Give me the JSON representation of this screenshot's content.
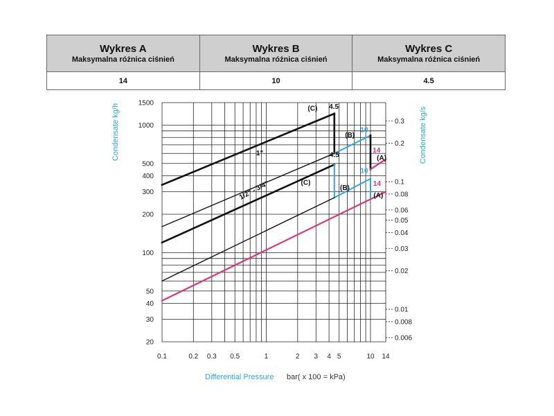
{
  "table": {
    "headers": [
      {
        "title": "Wykres A",
        "subtitle": "Maksymalna różnica ciśnień"
      },
      {
        "title": "Wykres B",
        "subtitle": "Maksymalna różnica ciśnień"
      },
      {
        "title": "Wykres C",
        "subtitle": "Maksymalna różnica ciśnień"
      }
    ],
    "values": [
      "14",
      "10",
      "4.5"
    ]
  },
  "colors": {
    "black": "#111111",
    "blue": "#27a9e1",
    "magenta": "#e0337a",
    "grid": "#222222",
    "axis_label": "#27a9e1"
  },
  "chart_data": {
    "type": "line",
    "x_scale": "log",
    "y_scale": "log",
    "xlim": [
      0.1,
      14
    ],
    "ylim": [
      20,
      1500
    ],
    "y2lim": [
      0.00556,
      0.4167
    ],
    "xticks": [
      0.1,
      0.2,
      0.3,
      0.5,
      1,
      2,
      3,
      4,
      5,
      10,
      14
    ],
    "xtick_labels": [
      "0.1",
      "0.2",
      "0.3",
      "0.5",
      "1",
      "2",
      "3",
      "4",
      "5",
      "10",
      "14"
    ],
    "yticks": [
      20,
      30,
      40,
      50,
      100,
      200,
      300,
      400,
      500,
      1000,
      1500
    ],
    "ytick_labels": [
      "20",
      "30",
      "40",
      "50",
      "100",
      "200",
      "300",
      "400",
      "500",
      "1000",
      "1500"
    ],
    "y2ticks": [
      0.006,
      0.008,
      0.01,
      0.02,
      0.03,
      0.04,
      0.05,
      0.06,
      0.08,
      0.1,
      0.2,
      0.3
    ],
    "y2tick_labels": [
      "0.006",
      "0.008",
      "0.01",
      "0.02",
      "0.03",
      "0.04",
      "0.05",
      "0.06",
      "0.08",
      "0.1",
      "0.2",
      "0.3"
    ],
    "xlabel": "Differential Pressure",
    "xlabel_units": "bar( x 100 = kPa)",
    "ylabel": "Condensate kg/h",
    "y2label": "Condensate kg/s",
    "grid": true,
    "series": [
      {
        "name": "1\"",
        "color": "black",
        "width": 2.6,
        "x": [
          0.1,
          4.5
        ],
        "y": [
          340,
          1230
        ]
      },
      {
        "color": "black",
        "width": 2.6,
        "x": [
          4.5,
          4.5
        ],
        "y": [
          1230,
          600
        ]
      },
      {
        "color": "blue",
        "width": 2.0,
        "x": [
          4.5,
          10
        ],
        "y": [
          600,
          830
        ]
      },
      {
        "color": "black",
        "width": 2.6,
        "x": [
          10,
          10
        ],
        "y": [
          830,
          450
        ]
      },
      {
        "color": "magenta",
        "width": 2.2,
        "x": [
          10,
          14
        ],
        "y": [
          450,
          540
        ]
      },
      {
        "color": "black",
        "width": 1.4,
        "x": [
          0.1,
          4.5
        ],
        "y": [
          160,
          600
        ]
      },
      {
        "name": "1/2\" - 3/4\"",
        "color": "black",
        "width": 2.6,
        "x": [
          0.1,
          4.5
        ],
        "y": [
          120,
          490
        ]
      },
      {
        "color": "blue",
        "width": 2.0,
        "x": [
          4.5,
          4.5
        ],
        "y": [
          490,
          270
        ]
      },
      {
        "color": "blue",
        "width": 2.0,
        "x": [
          4.5,
          10
        ],
        "y": [
          270,
          380
        ]
      },
      {
        "color": "blue",
        "width": 2.0,
        "x": [
          10,
          10
        ],
        "y": [
          380,
          270
        ]
      },
      {
        "color": "black",
        "width": 1.4,
        "x": [
          0.1,
          4.5
        ],
        "y": [
          60,
          270
        ]
      },
      {
        "color": "magenta",
        "width": 2.2,
        "x": [
          0.1,
          14
        ],
        "y": [
          42,
          300
        ]
      }
    ],
    "annotations": [
      {
        "text": "(C)",
        "x": 2.5,
        "y": 1300,
        "color": "black"
      },
      {
        "text": "4.5",
        "x": 4.0,
        "y": 1340,
        "color": "black"
      },
      {
        "text": "(B)",
        "x": 5.7,
        "y": 800,
        "color": "black"
      },
      {
        "text": "10",
        "x": 8.0,
        "y": 880,
        "color": "blue"
      },
      {
        "text": "1\"",
        "x": 0.8,
        "y": 580,
        "color": "black"
      },
      {
        "text": "14",
        "x": 10.5,
        "y": 610,
        "color": "magenta"
      },
      {
        "text": "(A)",
        "x": 11.5,
        "y": 530,
        "color": "black"
      },
      {
        "text": "4.5",
        "x": 4.05,
        "y": 560,
        "color": "black"
      },
      {
        "text": "(C)",
        "x": 2.15,
        "y": 340,
        "color": "black"
      },
      {
        "text": "(B)",
        "x": 5.1,
        "y": 310,
        "color": "black"
      },
      {
        "text": "10",
        "x": 8.0,
        "y": 420,
        "color": "blue"
      },
      {
        "text": "14",
        "x": 10.6,
        "y": 335,
        "color": "magenta"
      },
      {
        "text": "(A)",
        "x": 10.7,
        "y": 270,
        "color": "black"
      },
      {
        "text": "1/2\" - 3/4\"",
        "x": 0.57,
        "y": 260,
        "color": "black",
        "rotate": -28
      }
    ]
  }
}
